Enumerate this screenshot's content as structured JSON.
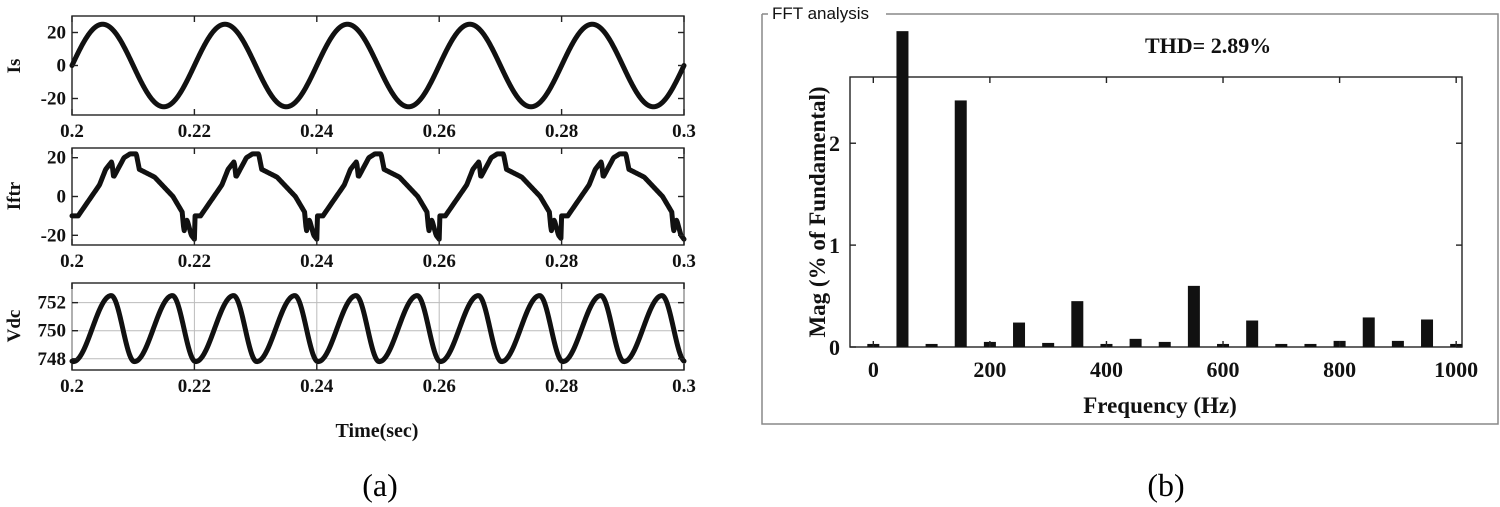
{
  "chart_data": [
    {
      "type": "line",
      "id": "is",
      "ylabel": "Is",
      "xlabel": "",
      "xlim": [
        0.2,
        0.3
      ],
      "ylim": [
        -30,
        30
      ],
      "xticks": [
        0.2,
        0.22,
        0.24,
        0.26,
        0.28,
        0.3
      ],
      "xtick_labels": [
        "0.2",
        "0.22",
        "0.24",
        "0.26",
        "0.28",
        "0.3"
      ],
      "yticks": [
        20,
        0,
        -20
      ],
      "ytick_labels": [
        "20",
        "0",
        "-20"
      ],
      "waveform": {
        "shape": "sine",
        "amplitude": 25,
        "frequency_hz": 50,
        "offset": 0,
        "phase_deg": 0
      },
      "grid": false
    },
    {
      "type": "line",
      "id": "iftr",
      "ylabel": "Iftr",
      "xlabel": "",
      "xlim": [
        0.2,
        0.3
      ],
      "ylim": [
        -25,
        25
      ],
      "xticks": [
        0.2,
        0.22,
        0.24,
        0.26,
        0.28,
        0.3
      ],
      "xtick_labels": [
        "0.2",
        "0.22",
        "0.24",
        "0.26",
        "0.28",
        "0.3"
      ],
      "yticks": [
        20,
        0,
        -20
      ],
      "ytick_labels": [
        "20",
        "0",
        "-20"
      ],
      "waveform": {
        "shape": "periodic",
        "period_s": 0.02,
        "points": [
          [
            0,
            -10
          ],
          [
            0.001,
            -10
          ],
          [
            0.0045,
            6
          ],
          [
            0.0055,
            14
          ],
          [
            0.0065,
            18
          ],
          [
            0.0068,
            10
          ],
          [
            0.0085,
            20
          ],
          [
            0.0095,
            22
          ],
          [
            0.0105,
            22
          ],
          [
            0.011,
            14
          ],
          [
            0.0135,
            10
          ],
          [
            0.0165,
            0
          ],
          [
            0.018,
            -8
          ],
          [
            0.0183,
            -18
          ],
          [
            0.0188,
            -12
          ],
          [
            0.0195,
            -20
          ],
          [
            0.02,
            -22
          ],
          [
            0.0201,
            -10
          ]
        ]
      },
      "grid": false
    },
    {
      "type": "line",
      "id": "vdc",
      "ylabel": "Vdc",
      "xlabel": "Time(sec)",
      "xlim": [
        0.2,
        0.3
      ],
      "ylim": [
        747.2,
        753.4
      ],
      "xticks": [
        0.2,
        0.22,
        0.24,
        0.26,
        0.28,
        0.3
      ],
      "xtick_labels": [
        "0.2",
        "0.22",
        "0.24",
        "0.26",
        "0.28",
        "0.3"
      ],
      "yticks": [
        752,
        750,
        748
      ],
      "ytick_labels": [
        "752",
        "750",
        "748"
      ],
      "waveform": {
        "shape": "sawtooth-ripple",
        "min": 747.8,
        "max": 752.5,
        "frequency_hz": 100,
        "rise_fraction": 0.62,
        "t0": 0.2002
      },
      "grid": true
    },
    {
      "type": "bar",
      "id": "fft",
      "group_title": "FFT analysis",
      "annotation": "THD= 2.89%",
      "xlabel": "Frequency (Hz)",
      "ylabel": "Mag (% of Fundamental)",
      "xlim": [
        -40,
        1010
      ],
      "ylim": [
        0,
        2.65
      ],
      "xticks": [
        0,
        200,
        400,
        600,
        800,
        1000
      ],
      "xtick_labels": [
        "0",
        "200",
        "400",
        "600",
        "800",
        "1000"
      ],
      "yticks": [
        0,
        1,
        2
      ],
      "ytick_labels": [
        "0",
        "1",
        "2"
      ],
      "x": [
        0,
        50,
        100,
        150,
        200,
        250,
        300,
        350,
        400,
        450,
        500,
        550,
        600,
        650,
        700,
        750,
        800,
        850,
        900,
        950,
        1000
      ],
      "values": [
        0.03,
        3.1,
        0.03,
        2.42,
        0.05,
        0.24,
        0.04,
        0.45,
        0.03,
        0.08,
        0.05,
        0.6,
        0.03,
        0.26,
        0.03,
        0.03,
        0.06,
        0.29,
        0.06,
        0.27,
        0.03
      ]
    }
  ],
  "captions": {
    "a": "(a)",
    "b": "(b)"
  }
}
